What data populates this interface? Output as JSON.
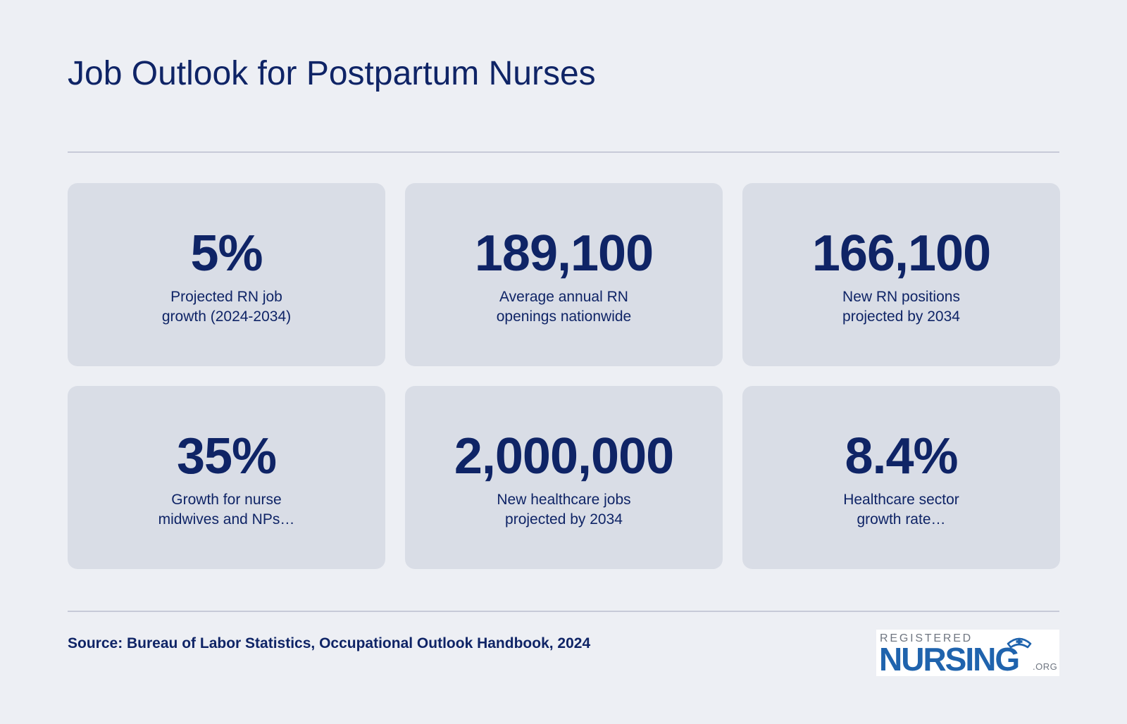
{
  "header": {
    "title": "Job Outlook for Postpartum Nurses"
  },
  "stats": [
    {
      "value": "5%",
      "label": "Projected RN job\ngrowth (2024-2034)"
    },
    {
      "value": "189,100",
      "label": "Average annual RN\nopenings nationwide"
    },
    {
      "value": "166,100",
      "label": "New RN positions\nprojected by 2034"
    },
    {
      "value": "35%",
      "label": "Growth for nurse\nmidwives and NPs…"
    },
    {
      "value": "2,000,000",
      "label": "New healthcare jobs\nprojected by 2034"
    },
    {
      "value": "8.4%",
      "label": "Healthcare sector\ngrowth rate…"
    }
  ],
  "footer": {
    "source": "Source: Bureau of Labor Statistics, Occupational Outlook Handbook, 2024",
    "logo": {
      "top_text": "REGISTERED",
      "main_text": "NURSING",
      "suffix_text": ".ORG",
      "icon": "nurse-cap-icon",
      "colors": {
        "primary": "#1f63ad",
        "secondary": "#6f7681"
      }
    }
  },
  "colors": {
    "background": "#edeff4",
    "card": "#d9dde6",
    "text": "#0f2466",
    "divider": "#c7cad8"
  }
}
